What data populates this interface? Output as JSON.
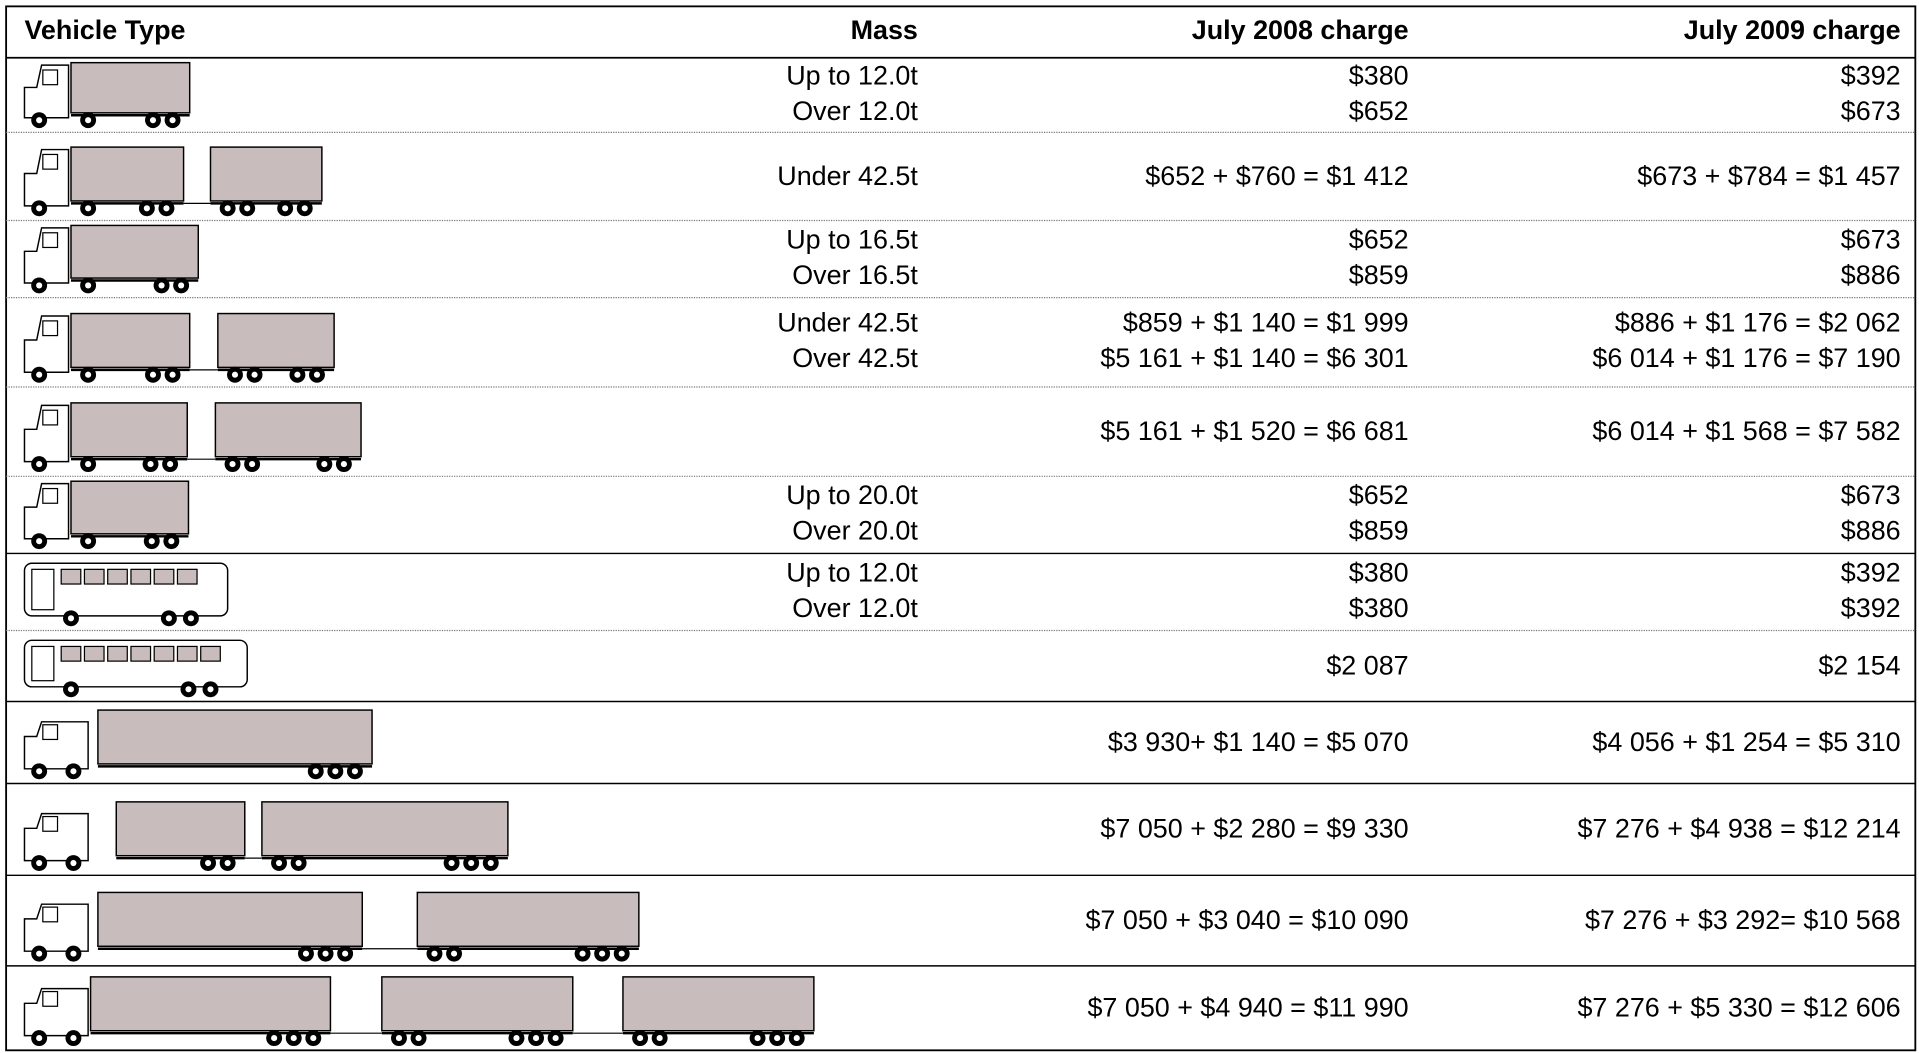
{
  "table": {
    "header": [
      "Vehicle Type",
      "Mass",
      "July 2008 charge",
      "July 2009 charge"
    ],
    "rows": [
      {
        "mass": [
          "Up to 12.0t",
          "Over 12.0t"
        ],
        "charge_2008": [
          "$380",
          "$652"
        ],
        "charge_2009": [
          "$392",
          "$673"
        ]
      },
      {
        "mass": [
          "Under 42.5t"
        ],
        "charge_2008": [
          "$652 + $760 = $1 412"
        ],
        "charge_2009": [
          "$673 + $784 = $1 457"
        ]
      },
      {
        "mass": [
          "Up to 16.5t",
          "Over 16.5t"
        ],
        "charge_2008": [
          "$652",
          "$859"
        ],
        "charge_2009": [
          "$673",
          "$886"
        ]
      },
      {
        "mass": [
          "Under 42.5t",
          "Over 42.5t"
        ],
        "charge_2008": [
          "$859 + $1 140 = $1 999",
          "$5 161 + $1 140 = $6 301"
        ],
        "charge_2009": [
          "$886 + $1 176 = $2 062",
          "$6 014 + $1 176 = $7 190"
        ]
      },
      {
        "mass": [],
        "charge_2008": [
          "$5 161 + $1 520 = $6 681"
        ],
        "charge_2009": [
          "$6 014 + $1 568 = $7 582"
        ]
      },
      {
        "mass": [
          "Up to 20.0t",
          "Over 20.0t"
        ],
        "charge_2008": [
          "$652",
          "$859"
        ],
        "charge_2009": [
          "$673",
          "$886"
        ]
      },
      {
        "mass": [
          "Up to 12.0t",
          "Over 12.0t"
        ],
        "charge_2008": [
          "$380",
          "$380"
        ],
        "charge_2009": [
          "$392",
          "$392"
        ]
      },
      {
        "mass": [],
        "charge_2008": [
          "$2 087"
        ],
        "charge_2009": [
          "$2 154"
        ]
      },
      {
        "mass": [],
        "charge_2008": [
          "$3 930+ $1 140 = $5 070"
        ],
        "charge_2009": [
          "$4 056 + $1 254 = $5 310"
        ]
      },
      {
        "mass": [],
        "charge_2008": [
          "$7 050 + $2 280 = $9 330"
        ],
        "charge_2009": [
          "$7 276 + $4 938 = $12 214"
        ]
      },
      {
        "mass": [],
        "charge_2008": [
          "$7 050 + $3 040 = $10 090"
        ],
        "charge_2009": [
          "$7 276 + $3 292= $10 568"
        ]
      },
      {
        "mass": [],
        "charge_2008": [
          "$7 050 + $4 940 = $11 990"
        ],
        "charge_2009": [
          "$7 276 + $5 330 = $12 606"
        ]
      }
    ]
  }
}
